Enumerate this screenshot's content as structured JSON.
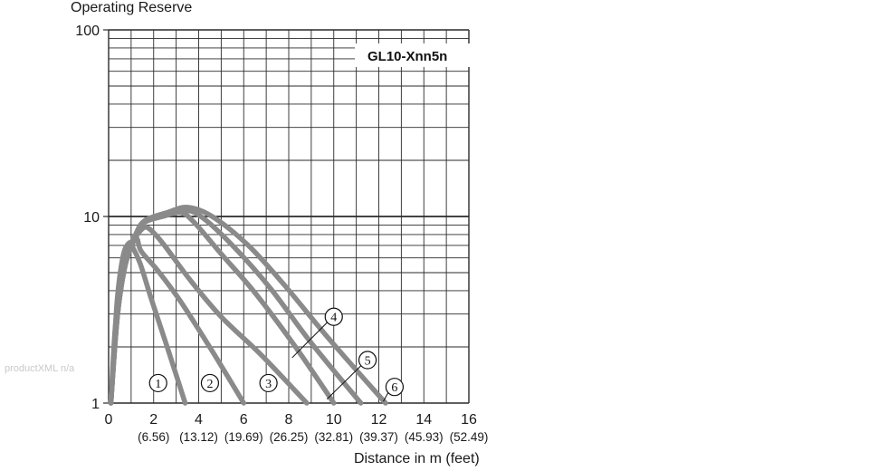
{
  "chart_data": {
    "type": "line",
    "ylabel": "Operating Reserve",
    "xlabel": "Distance in m (feet)",
    "model": "GL10-Xnn5n",
    "xlim": [
      0,
      16
    ],
    "ylim": [
      1,
      100
    ],
    "yscale": "log",
    "grid": true,
    "y_ticks": [
      "1",
      "10",
      "100"
    ],
    "x_ticks": [
      {
        "m": "0",
        "ft": ""
      },
      {
        "m": "2",
        "ft": "(6.56)"
      },
      {
        "m": "4",
        "ft": "(13.12)"
      },
      {
        "m": "6",
        "ft": "(19.69)"
      },
      {
        "m": "8",
        "ft": "(26.25)"
      },
      {
        "m": "10",
        "ft": "(32.81)"
      },
      {
        "m": "12",
        "ft": "(39.37)"
      },
      {
        "m": "14",
        "ft": "(45.93)"
      },
      {
        "m": "16",
        "ft": "(52.49)"
      }
    ],
    "series": [
      {
        "name": "1",
        "points": [
          [
            0.1,
            1
          ],
          [
            0.25,
            2
          ],
          [
            0.4,
            3.8
          ],
          [
            0.65,
            6.2
          ],
          [
            0.9,
            7.2
          ],
          [
            1.05,
            6.9
          ],
          [
            1.4,
            5.6
          ],
          [
            1.9,
            3.6
          ],
          [
            2.6,
            2.0
          ],
          [
            3.4,
            1.0
          ]
        ]
      },
      {
        "name": "2",
        "points": [
          [
            0.1,
            1
          ],
          [
            0.3,
            2.6
          ],
          [
            0.6,
            5.0
          ],
          [
            0.95,
            7.0
          ],
          [
            1.25,
            7.6
          ],
          [
            1.45,
            6.5
          ],
          [
            2.2,
            5.1
          ],
          [
            3.2,
            3.5
          ],
          [
            4.6,
            1.9
          ],
          [
            6.0,
            1.0
          ]
        ]
      },
      {
        "name": "3",
        "points": [
          [
            0.1,
            1
          ],
          [
            0.35,
            2.7
          ],
          [
            0.7,
            5.2
          ],
          [
            1.1,
            7.3
          ],
          [
            1.5,
            8.6
          ],
          [
            1.8,
            8.6
          ],
          [
            2.4,
            7.2
          ],
          [
            3.6,
            4.6
          ],
          [
            5.0,
            2.9
          ],
          [
            6.8,
            1.8
          ],
          [
            8.8,
            1.0
          ]
        ]
      },
      {
        "name": "4",
        "points": [
          [
            0.1,
            1
          ],
          [
            0.4,
            3.0
          ],
          [
            0.8,
            6.0
          ],
          [
            1.2,
            8.0
          ],
          [
            1.6,
            9.3
          ],
          [
            2.4,
            10.0
          ],
          [
            3.2,
            10.5
          ],
          [
            3.8,
            9.3
          ],
          [
            5.0,
            6.3
          ],
          [
            6.5,
            3.9
          ],
          [
            8.3,
            2.0
          ],
          [
            10.0,
            1.0
          ]
        ]
      },
      {
        "name": "5",
        "points": [
          [
            0.1,
            1
          ],
          [
            0.4,
            3.0
          ],
          [
            0.8,
            6.0
          ],
          [
            1.2,
            8.0
          ],
          [
            1.6,
            9.4
          ],
          [
            2.5,
            10.2
          ],
          [
            3.4,
            10.8
          ],
          [
            4.2,
            9.8
          ],
          [
            5.6,
            6.8
          ],
          [
            7.2,
            4.1
          ],
          [
            9.0,
            2.1
          ],
          [
            11.2,
            1.0
          ]
        ]
      },
      {
        "name": "6",
        "points": [
          [
            0.1,
            1
          ],
          [
            0.4,
            3.0
          ],
          [
            0.8,
            6.0
          ],
          [
            1.2,
            8.0
          ],
          [
            1.6,
            9.5
          ],
          [
            2.6,
            10.5
          ],
          [
            3.5,
            11.2
          ],
          [
            4.6,
            10.0
          ],
          [
            6.2,
            7.0
          ],
          [
            7.8,
            4.3
          ],
          [
            9.8,
            2.2
          ],
          [
            12.3,
            1.0
          ]
        ]
      }
    ],
    "curve_labels": [
      {
        "text": "1",
        "x": 2.2,
        "y": 1.28
      },
      {
        "text": "2",
        "x": 4.5,
        "y": 1.28
      },
      {
        "text": "3",
        "x": 7.1,
        "y": 1.28
      },
      {
        "text": "4",
        "x": 10.0,
        "y": 2.9
      },
      {
        "text": "5",
        "x": 11.5,
        "y": 1.7
      },
      {
        "text": "6",
        "x": 12.7,
        "y": 1.22
      }
    ],
    "colors": {
      "curve": "#8a8a8a",
      "grid": "#2a2a2a"
    }
  },
  "watermark": "productXML n/a"
}
